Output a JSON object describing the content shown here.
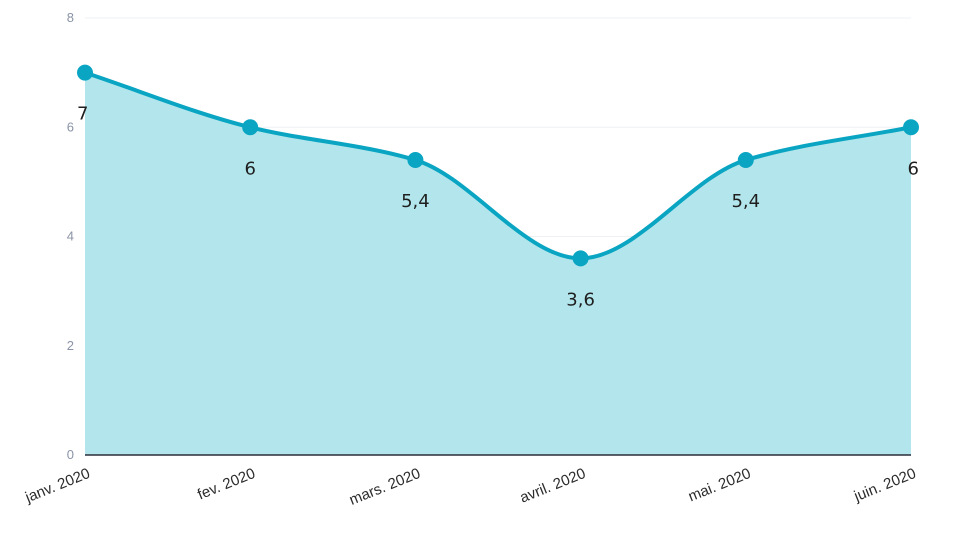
{
  "chart_data": {
    "type": "area",
    "categories": [
      "janv. 2020",
      "fev. 2020",
      "mars. 2020",
      "avril. 2020",
      "mai. 2020",
      "juin. 2020"
    ],
    "series": [
      {
        "values": [
          7,
          6,
          5.4,
          3.6,
          5.4,
          6
        ],
        "data_labels": [
          "7",
          "6",
          "5,4",
          "3,6",
          "5,4",
          "6"
        ]
      }
    ],
    "ylim": [
      0,
      8
    ],
    "yticks": [
      "0",
      "2",
      "4",
      "6",
      "8"
    ],
    "grid": true,
    "colors": {
      "line": "#0aa5c2",
      "fill": "#b3e6ec",
      "grid": "#eef0f3",
      "axis": "#2a2f3a"
    }
  }
}
